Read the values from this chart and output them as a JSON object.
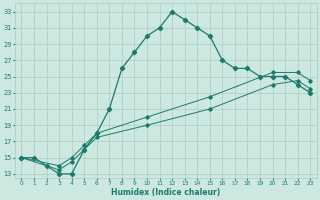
{
  "xlabel": "Humidex (Indice chaleur)",
  "bg_color": "#cce8e0",
  "grid_color": "#aaccC4",
  "line_color": "#1a7a6e",
  "xlim": [
    -0.5,
    23.5
  ],
  "ylim": [
    12.5,
    34
  ],
  "xticks": [
    0,
    1,
    2,
    3,
    4,
    5,
    6,
    7,
    8,
    9,
    10,
    11,
    12,
    13,
    14,
    15,
    16,
    17,
    18,
    19,
    20,
    21,
    22,
    23
  ],
  "yticks": [
    13,
    15,
    17,
    19,
    21,
    23,
    25,
    27,
    29,
    31,
    33
  ],
  "line1_x": [
    0,
    1,
    2,
    3,
    4,
    5,
    6,
    7,
    8,
    9,
    10,
    11,
    12,
    13,
    14,
    15,
    16,
    17,
    18,
    19,
    20,
    21,
    22,
    23
  ],
  "line1_y": [
    15,
    15,
    14,
    13,
    13,
    16,
    18,
    21,
    26,
    28,
    30,
    31,
    33,
    32,
    31,
    30,
    27,
    26,
    26,
    25,
    25,
    25,
    24,
    23
  ],
  "line2_x": [
    0,
    3,
    4,
    5,
    6,
    10,
    15,
    20,
    22,
    23
  ],
  "line2_y": [
    15,
    13.5,
    14.5,
    16,
    17.5,
    19,
    21,
    24,
    24.5,
    23.5
  ],
  "line3_x": [
    0,
    3,
    4,
    5,
    6,
    10,
    15,
    20,
    22,
    23
  ],
  "line3_y": [
    15,
    14,
    15,
    16.5,
    18,
    20,
    22.5,
    25.5,
    25.5,
    24.5
  ]
}
